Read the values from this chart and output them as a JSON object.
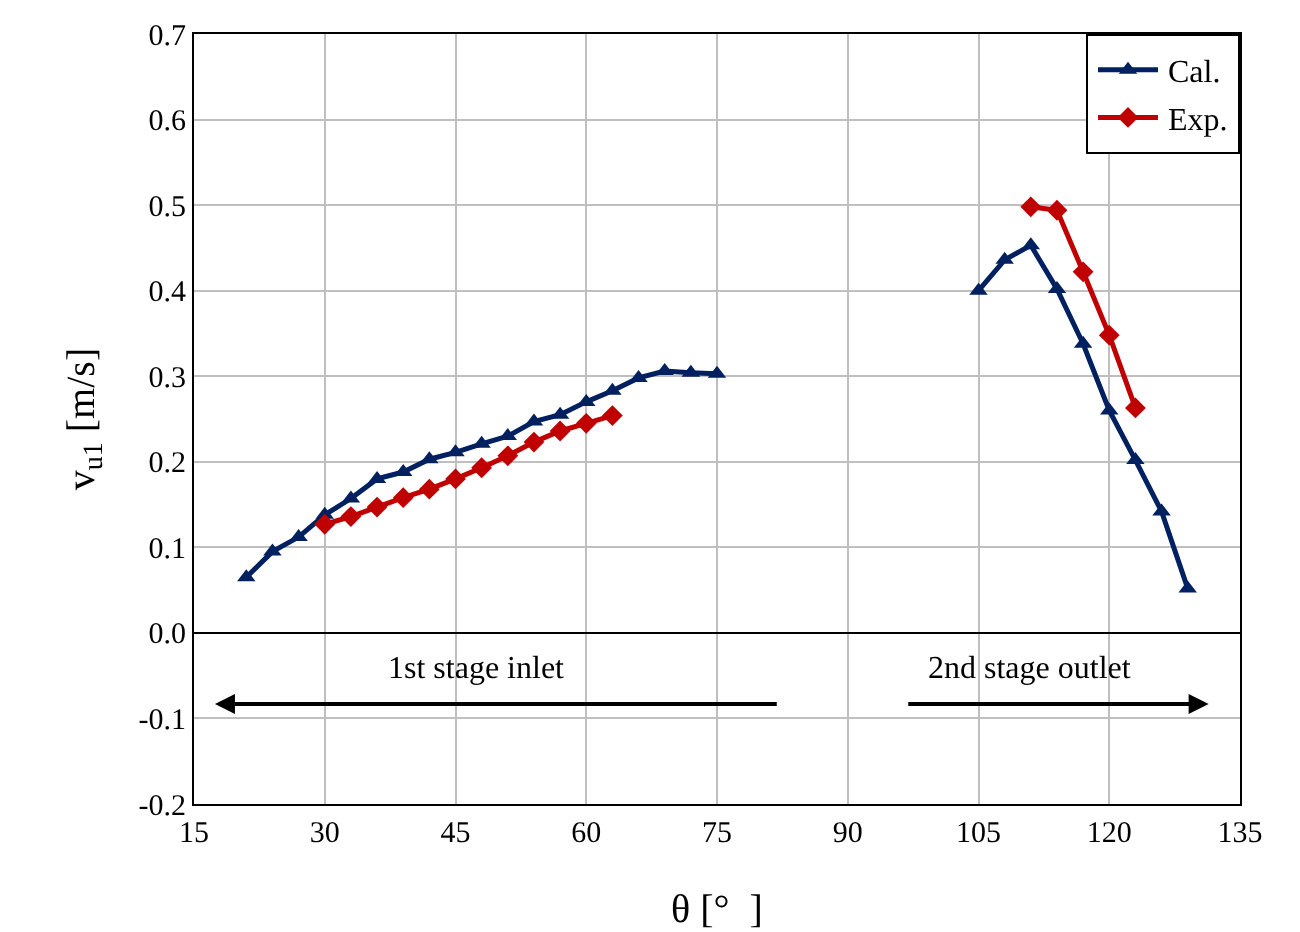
{
  "chart_data": {
    "type": "line",
    "xlabel": "θ [°  ]",
    "ylabel": "v$_{u1}$ [m/s]",
    "xlim": [
      15,
      135
    ],
    "xticks": [
      15,
      30,
      45,
      60,
      75,
      90,
      105,
      120,
      135
    ],
    "ylim": [
      -0.2,
      0.7
    ],
    "yticks": [
      {
        "value": -0.2,
        "label": "-0.2"
      },
      {
        "value": -0.1,
        "label": "-0.1"
      },
      {
        "value": 0,
        "label": "0.0"
      },
      {
        "value": 0.1,
        "label": "0.1"
      },
      {
        "value": 0.2,
        "label": "0.2"
      },
      {
        "value": 0.3,
        "label": "0.3"
      },
      {
        "value": 0.4,
        "label": "0.4"
      },
      {
        "value": 0.5,
        "label": "0.5"
      },
      {
        "value": 0.6,
        "label": "0.6"
      },
      {
        "value": 0.7,
        "label": "0.7"
      }
    ],
    "grid": true,
    "legend": "top right",
    "line_style": "solid",
    "series": [
      {
        "name": "Cal.",
        "color": "#002060",
        "marker": "triangle",
        "x": [
          21,
          24,
          27,
          30,
          33,
          36,
          39,
          42,
          45,
          48,
          51,
          54,
          57,
          60,
          63,
          66,
          69,
          72,
          75,
          90,
          105,
          108,
          111,
          114,
          117,
          120,
          123,
          126,
          129
        ],
        "values": [
          0.065,
          0.095,
          0.112,
          0.138,
          0.157,
          0.18,
          0.188,
          0.203,
          0.211,
          0.221,
          0.23,
          0.247,
          0.255,
          0.27,
          0.283,
          0.298,
          0.306,
          0.304,
          0.303,
          null,
          0.4,
          0.436,
          0.453,
          0.402,
          0.338,
          0.26,
          0.202,
          0.142,
          0.052
        ]
      },
      {
        "name": "Exp.",
        "color": "#c00000",
        "marker": "diamond",
        "x": [
          30,
          33,
          36,
          39,
          42,
          45,
          48,
          51,
          54,
          57,
          60,
          63,
          90,
          111,
          114,
          117,
          120,
          123
        ],
        "values": [
          0.127,
          0.136,
          0.147,
          0.158,
          0.168,
          0.18,
          0.193,
          0.207,
          0.223,
          0.236,
          0.245,
          0.254,
          null,
          0.498,
          0.494,
          0.422,
          0.348,
          0.263
        ]
      }
    ],
    "annotations": [
      "1st stage inlet",
      "2nd stage outlet"
    ]
  }
}
